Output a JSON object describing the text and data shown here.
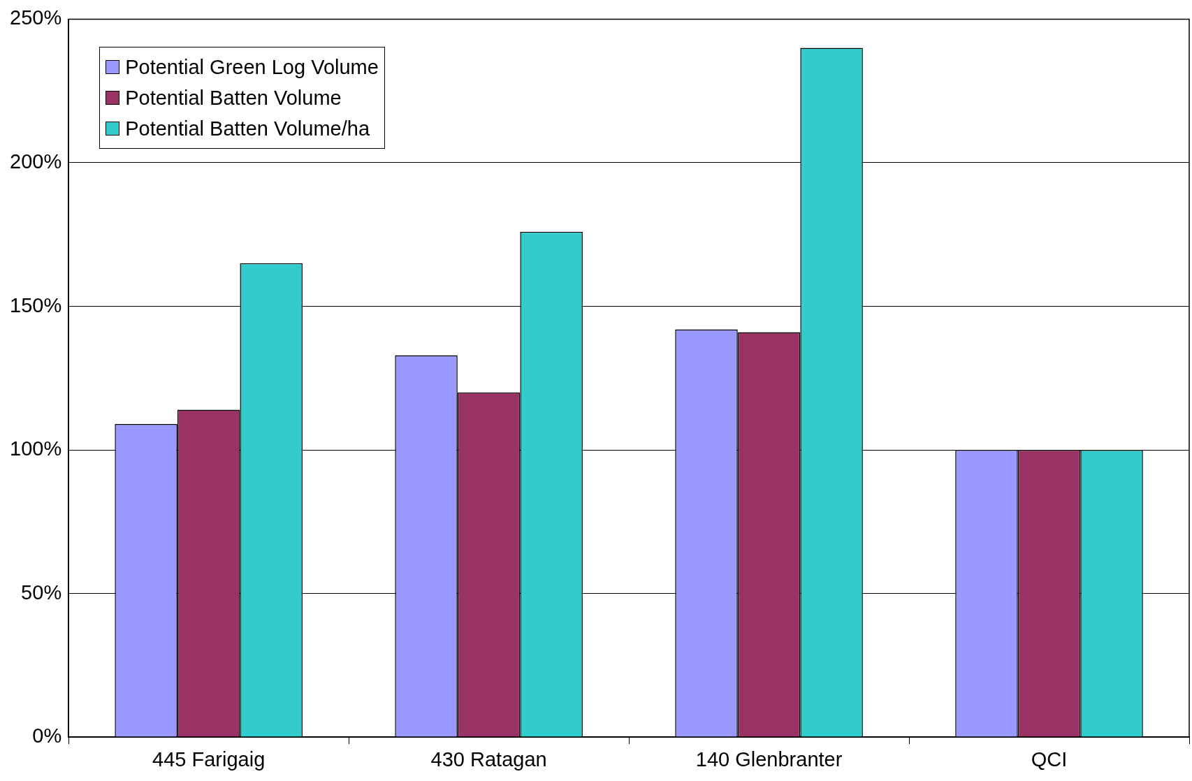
{
  "chart_data": {
    "type": "bar",
    "categories": [
      "445 Farigaig",
      "430 Ratagan",
      "140 Glenbranter",
      "QCI"
    ],
    "series": [
      {
        "name": "Potential Green Log Volume",
        "color": "#9999ff",
        "values": [
          109,
          133,
          142,
          100
        ]
      },
      {
        "name": "Potential Batten Volume",
        "color": "#993366",
        "values": [
          114,
          120,
          141,
          100
        ]
      },
      {
        "name": "Potential Batten Volume/ha",
        "color": "#33cccc",
        "values": [
          165,
          176,
          240,
          100
        ]
      }
    ],
    "ylim": [
      0,
      250
    ],
    "yticks": [
      {
        "value": 0,
        "label": "0%"
      },
      {
        "value": 50,
        "label": "50%"
      },
      {
        "value": 100,
        "label": "100%"
      },
      {
        "value": 150,
        "label": "150%"
      },
      {
        "value": 200,
        "label": "200%"
      },
      {
        "value": 250,
        "label": "250%"
      }
    ],
    "grid": "y",
    "legend": "top left"
  }
}
